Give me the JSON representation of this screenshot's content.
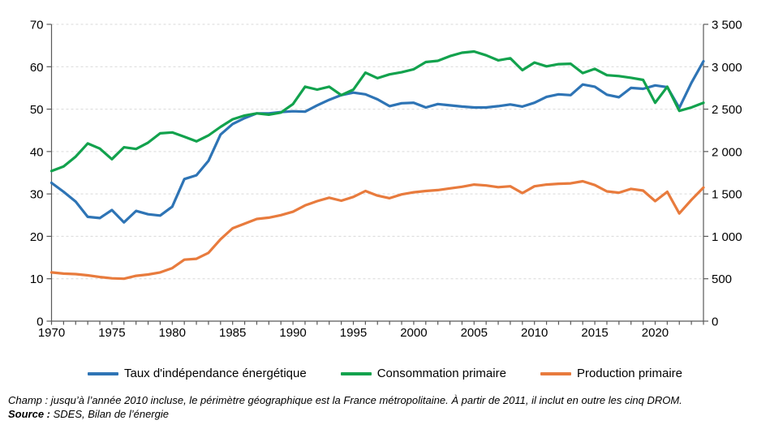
{
  "chart_data": {
    "type": "line",
    "x": [
      1970,
      1971,
      1972,
      1973,
      1974,
      1975,
      1976,
      1977,
      1978,
      1979,
      1980,
      1981,
      1982,
      1983,
      1984,
      1985,
      1986,
      1987,
      1988,
      1989,
      1990,
      1991,
      1992,
      1993,
      1994,
      1995,
      1996,
      1997,
      1998,
      1999,
      2000,
      2001,
      2002,
      2003,
      2004,
      2005,
      2006,
      2007,
      2008,
      2009,
      2010,
      2011,
      2012,
      2013,
      2014,
      2015,
      2016,
      2017,
      2018,
      2019,
      2020,
      2021,
      2022,
      2023,
      2024
    ],
    "x_tick_labels": [
      "1970",
      "1975",
      "1980",
      "1985",
      "1990",
      "1995",
      "2000",
      "2005",
      "2010",
      "2015",
      "2020"
    ],
    "left_axis": {
      "min": 0,
      "max": 70,
      "tick_step": 10,
      "ticks": [
        "0",
        "10",
        "20",
        "30",
        "40",
        "50",
        "60",
        "70"
      ]
    },
    "right_axis": {
      "min": 0,
      "max": 3500,
      "tick_step": 500,
      "ticks": [
        "0",
        "500",
        "1 000",
        "1 500",
        "2 000",
        "2 500",
        "3 000",
        "3 500"
      ]
    },
    "grid": "horizontal-dashed",
    "legend_position": "bottom",
    "series": [
      {
        "name": "Taux d'indépendance énergétique",
        "axis": "left",
        "color": "#2E74B5",
        "values": [
          32.6,
          30.5,
          28.2,
          24.6,
          24.3,
          26.2,
          23.3,
          26.0,
          25.2,
          24.9,
          27.0,
          33.5,
          34.4,
          37.8,
          44.0,
          46.5,
          47.9,
          49.0,
          49.0,
          49.3,
          49.5,
          49.4,
          50.9,
          52.2,
          53.3,
          53.9,
          53.5,
          52.3,
          50.7,
          51.4,
          51.5,
          50.4,
          51.2,
          50.9,
          50.6,
          50.4,
          50.4,
          50.7,
          51.1,
          50.6,
          51.5,
          52.9,
          53.5,
          53.3,
          55.8,
          55.3,
          53.4,
          52.8,
          55.0,
          54.8,
          55.6,
          55.2,
          50.3,
          56.2,
          61.3
        ]
      },
      {
        "name": "Consommation primaire",
        "axis": "right",
        "color": "#12A24D",
        "values": [
          1770,
          1825,
          1940,
          2095,
          2035,
          1910,
          2050,
          2030,
          2105,
          2215,
          2225,
          2175,
          2120,
          2190,
          2290,
          2380,
          2425,
          2450,
          2435,
          2460,
          2560,
          2765,
          2730,
          2765,
          2665,
          2730,
          2930,
          2865,
          2910,
          2935,
          2970,
          3055,
          3070,
          3125,
          3165,
          3180,
          3135,
          3075,
          3100,
          2960,
          3050,
          3005,
          3030,
          3035,
          2925,
          2975,
          2900,
          2890,
          2870,
          2845,
          2575,
          2765,
          2480,
          2520,
          2575
        ]
      },
      {
        "name": "Production primaire",
        "axis": "right",
        "color": "#E87B3D",
        "values": [
          575,
          560,
          555,
          540,
          520,
          505,
          500,
          535,
          550,
          575,
          625,
          725,
          735,
          805,
          965,
          1095,
          1150,
          1205,
          1220,
          1250,
          1290,
          1365,
          1415,
          1455,
          1420,
          1465,
          1535,
          1480,
          1450,
          1495,
          1520,
          1535,
          1545,
          1565,
          1585,
          1610,
          1600,
          1580,
          1590,
          1510,
          1590,
          1610,
          1620,
          1625,
          1650,
          1605,
          1530,
          1515,
          1560,
          1540,
          1415,
          1525,
          1270,
          1430,
          1575
        ]
      }
    ]
  },
  "colors": {
    "blue": "#2E74B5",
    "green": "#12A24D",
    "orange": "#E87B3D",
    "gridline": "#D9D9D9",
    "axis": "#595959",
    "text": "#000000"
  },
  "footnotes": {
    "champ": "Champ : jusqu’à l’année 2010 incluse, le périmètre géographique est la France métropolitaine. À partir de 2011, il inclut en outre les cinq DROM.",
    "source_label": "Source :",
    "source_text": " SDES, Bilan de l’énergie"
  }
}
